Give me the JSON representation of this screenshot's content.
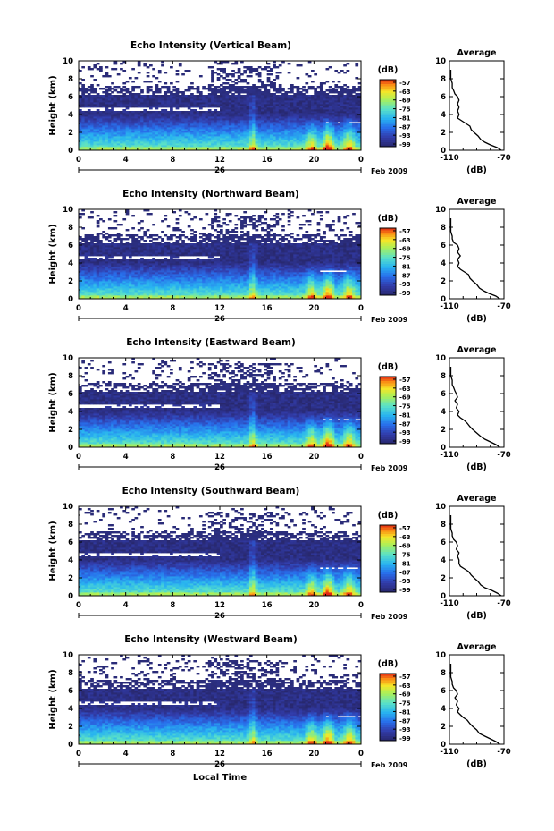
{
  "chart_data": [
    {
      "type": "heatmap",
      "title": "Echo Intensity (Vertical Beam)",
      "ylabel": "Height (km)",
      "x_ticks": [
        "0",
        "4",
        "8",
        "12",
        "16",
        "20",
        "0"
      ],
      "y_ticks": [
        "0",
        "2",
        "4",
        "6",
        "8",
        "10"
      ],
      "xlim": [
        0,
        24
      ],
      "ylim": [
        0,
        10
      ],
      "date_label": "26",
      "month_label": "Feb 2009",
      "colorbar": {
        "label": "(dB)",
        "ticks": [
          "-57",
          "-63",
          "-69",
          "-75",
          "-81",
          "-87",
          "-93",
          "-99"
        ]
      },
      "profile": {
        "title": "Average",
        "xlabel": "(dB)",
        "x_ticks": [
          "-110",
          "-70"
        ],
        "y_ticks": [
          "0",
          "2",
          "4",
          "6",
          "8",
          "10"
        ],
        "xlim": [
          -110,
          -70
        ],
        "ylim": [
          0,
          10
        ],
        "points": [
          [
            -72,
            0.0
          ],
          [
            -75,
            0.3
          ],
          [
            -80,
            0.6
          ],
          [
            -84,
            0.9
          ],
          [
            -87,
            1.2
          ],
          [
            -89,
            1.6
          ],
          [
            -92,
            2.0
          ],
          [
            -94,
            2.3
          ],
          [
            -95,
            2.7
          ],
          [
            -98,
            3.0
          ],
          [
            -101,
            3.3
          ],
          [
            -104,
            3.6
          ],
          [
            -103,
            4.0
          ],
          [
            -104,
            4.4
          ],
          [
            -103,
            4.8
          ],
          [
            -104,
            5.2
          ],
          [
            -103,
            5.6
          ],
          [
            -104,
            6.0
          ],
          [
            -106,
            6.3
          ],
          [
            -107,
            6.7
          ],
          [
            -108,
            7.0
          ],
          [
            -108,
            7.5
          ],
          [
            -109,
            8.0
          ],
          [
            -109,
            8.5
          ],
          [
            -109,
            9.0
          ]
        ]
      }
    },
    {
      "type": "heatmap",
      "title": "Echo Intensity (Northward Beam)",
      "ylabel": "Height (km)",
      "x_ticks": [
        "0",
        "4",
        "8",
        "12",
        "16",
        "20",
        "0"
      ],
      "y_ticks": [
        "0",
        "2",
        "4",
        "6",
        "8",
        "10"
      ],
      "xlim": [
        0,
        24
      ],
      "ylim": [
        0,
        10
      ],
      "date_label": "26",
      "month_label": "Feb 2009",
      "colorbar": {
        "label": "(dB)",
        "ticks": [
          "-57",
          "-63",
          "-69",
          "-75",
          "-81",
          "-87",
          "-93",
          "-99"
        ]
      },
      "profile": {
        "title": "Average",
        "xlabel": "(dB)",
        "x_ticks": [
          "-110",
          "-70"
        ],
        "y_ticks": [
          "0",
          "2",
          "4",
          "6",
          "8",
          "10"
        ],
        "xlim": [
          -110,
          -70
        ],
        "ylim": [
          0,
          10
        ],
        "points": [
          [
            -73,
            0.0
          ],
          [
            -76,
            0.3
          ],
          [
            -81,
            0.6
          ],
          [
            -85,
            0.9
          ],
          [
            -88,
            1.2
          ],
          [
            -90,
            1.6
          ],
          [
            -93,
            2.0
          ],
          [
            -95,
            2.3
          ],
          [
            -96,
            2.7
          ],
          [
            -99,
            3.0
          ],
          [
            -102,
            3.3
          ],
          [
            -104,
            3.6
          ],
          [
            -103,
            4.0
          ],
          [
            -104,
            4.4
          ],
          [
            -102,
            4.8
          ],
          [
            -104,
            5.2
          ],
          [
            -103,
            5.6
          ],
          [
            -104,
            6.0
          ],
          [
            -107,
            6.3
          ],
          [
            -108,
            6.7
          ],
          [
            -108,
            7.0
          ],
          [
            -109,
            7.5
          ],
          [
            -109,
            8.0
          ],
          [
            -109,
            8.5
          ],
          [
            -109,
            9.0
          ]
        ]
      }
    },
    {
      "type": "heatmap",
      "title": "Echo Intensity (Eastward Beam)",
      "ylabel": "Height (km)",
      "x_ticks": [
        "0",
        "4",
        "8",
        "12",
        "16",
        "20",
        "0"
      ],
      "y_ticks": [
        "0",
        "2",
        "4",
        "6",
        "8",
        "10"
      ],
      "xlim": [
        0,
        24
      ],
      "ylim": [
        0,
        10
      ],
      "date_label": "26",
      "month_label": "Feb 2009",
      "colorbar": {
        "label": "(dB)",
        "ticks": [
          "-57",
          "-63",
          "-69",
          "-75",
          "-81",
          "-87",
          "-93",
          "-99"
        ]
      },
      "profile": {
        "title": "Average",
        "xlabel": "(dB)",
        "x_ticks": [
          "-110",
          "-70"
        ],
        "y_ticks": [
          "0",
          "2",
          "4",
          "6",
          "8",
          "10"
        ],
        "xlim": [
          -110,
          -70
        ],
        "ylim": [
          0,
          10
        ],
        "points": [
          [
            -73,
            0.0
          ],
          [
            -76,
            0.3
          ],
          [
            -80,
            0.6
          ],
          [
            -84,
            0.9
          ],
          [
            -87,
            1.2
          ],
          [
            -90,
            1.6
          ],
          [
            -93,
            2.0
          ],
          [
            -95,
            2.3
          ],
          [
            -97,
            2.7
          ],
          [
            -99,
            3.0
          ],
          [
            -102,
            3.3
          ],
          [
            -104,
            3.6
          ],
          [
            -103,
            4.0
          ],
          [
            -105,
            4.4
          ],
          [
            -104,
            4.8
          ],
          [
            -106,
            5.2
          ],
          [
            -104,
            5.6
          ],
          [
            -105,
            6.0
          ],
          [
            -106,
            6.3
          ],
          [
            -107,
            6.7
          ],
          [
            -108,
            7.0
          ],
          [
            -108,
            7.5
          ],
          [
            -109,
            8.0
          ],
          [
            -109,
            8.5
          ],
          [
            -109,
            9.0
          ]
        ]
      }
    },
    {
      "type": "heatmap",
      "title": "Echo Intensity (Southward Beam)",
      "ylabel": "Height (km)",
      "x_ticks": [
        "0",
        "4",
        "8",
        "12",
        "16",
        "20",
        "0"
      ],
      "y_ticks": [
        "0",
        "2",
        "4",
        "6",
        "8",
        "10"
      ],
      "xlim": [
        0,
        24
      ],
      "ylim": [
        0,
        10
      ],
      "date_label": "26",
      "month_label": "Feb 2009",
      "colorbar": {
        "label": "(dB)",
        "ticks": [
          "-57",
          "-63",
          "-69",
          "-75",
          "-81",
          "-87",
          "-93",
          "-99"
        ]
      },
      "profile": {
        "title": "Average",
        "xlabel": "(dB)",
        "x_ticks": [
          "-110",
          "-70"
        ],
        "y_ticks": [
          "0",
          "2",
          "4",
          "6",
          "8",
          "10"
        ],
        "xlim": [
          -110,
          -70
        ],
        "ylim": [
          0,
          10
        ],
        "points": [
          [
            -72,
            0.0
          ],
          [
            -75,
            0.3
          ],
          [
            -79,
            0.6
          ],
          [
            -84,
            0.9
          ],
          [
            -87,
            1.2
          ],
          [
            -89,
            1.6
          ],
          [
            -92,
            2.0
          ],
          [
            -94,
            2.3
          ],
          [
            -96,
            2.7
          ],
          [
            -99,
            3.0
          ],
          [
            -102,
            3.3
          ],
          [
            -103,
            3.6
          ],
          [
            -103,
            4.0
          ],
          [
            -104,
            4.4
          ],
          [
            -103,
            4.8
          ],
          [
            -105,
            5.2
          ],
          [
            -104,
            5.6
          ],
          [
            -105,
            6.0
          ],
          [
            -107,
            6.3
          ],
          [
            -108,
            6.7
          ],
          [
            -108,
            7.0
          ],
          [
            -109,
            7.5
          ],
          [
            -109,
            8.0
          ],
          [
            -109,
            8.5
          ],
          [
            -109,
            9.0
          ]
        ]
      }
    },
    {
      "type": "heatmap",
      "title": "Echo Intensity (Westward Beam)",
      "ylabel": "Height (km)",
      "x_ticks": [
        "0",
        "4",
        "8",
        "12",
        "16",
        "20",
        "0"
      ],
      "y_ticks": [
        "0",
        "2",
        "4",
        "6",
        "8",
        "10"
      ],
      "xlim": [
        0,
        24
      ],
      "ylim": [
        0,
        10
      ],
      "date_label": "26",
      "month_label": "Feb 2009",
      "xlabel": "Local Time",
      "colorbar": {
        "label": "(dB)",
        "ticks": [
          "-57",
          "-63",
          "-69",
          "-75",
          "-81",
          "-87",
          "-93",
          "-99"
        ]
      },
      "profile": {
        "title": "Average",
        "xlabel": "(dB)",
        "x_ticks": [
          "-110",
          "-70"
        ],
        "y_ticks": [
          "0",
          "2",
          "4",
          "6",
          "8",
          "10"
        ],
        "xlim": [
          -110,
          -70
        ],
        "ylim": [
          0,
          10
        ],
        "points": [
          [
            -73,
            0.0
          ],
          [
            -76,
            0.3
          ],
          [
            -80,
            0.6
          ],
          [
            -84,
            0.9
          ],
          [
            -88,
            1.2
          ],
          [
            -90,
            1.6
          ],
          [
            -93,
            2.0
          ],
          [
            -95,
            2.3
          ],
          [
            -97,
            2.7
          ],
          [
            -100,
            3.0
          ],
          [
            -102,
            3.3
          ],
          [
            -104,
            3.6
          ],
          [
            -103,
            4.0
          ],
          [
            -105,
            4.4
          ],
          [
            -104,
            4.8
          ],
          [
            -106,
            5.2
          ],
          [
            -104,
            5.6
          ],
          [
            -105,
            6.0
          ],
          [
            -107,
            6.3
          ],
          [
            -108,
            6.7
          ],
          [
            -108,
            7.0
          ],
          [
            -109,
            7.5
          ],
          [
            -109,
            8.0
          ],
          [
            -109,
            8.5
          ],
          [
            -109,
            9.0
          ]
        ]
      }
    }
  ]
}
